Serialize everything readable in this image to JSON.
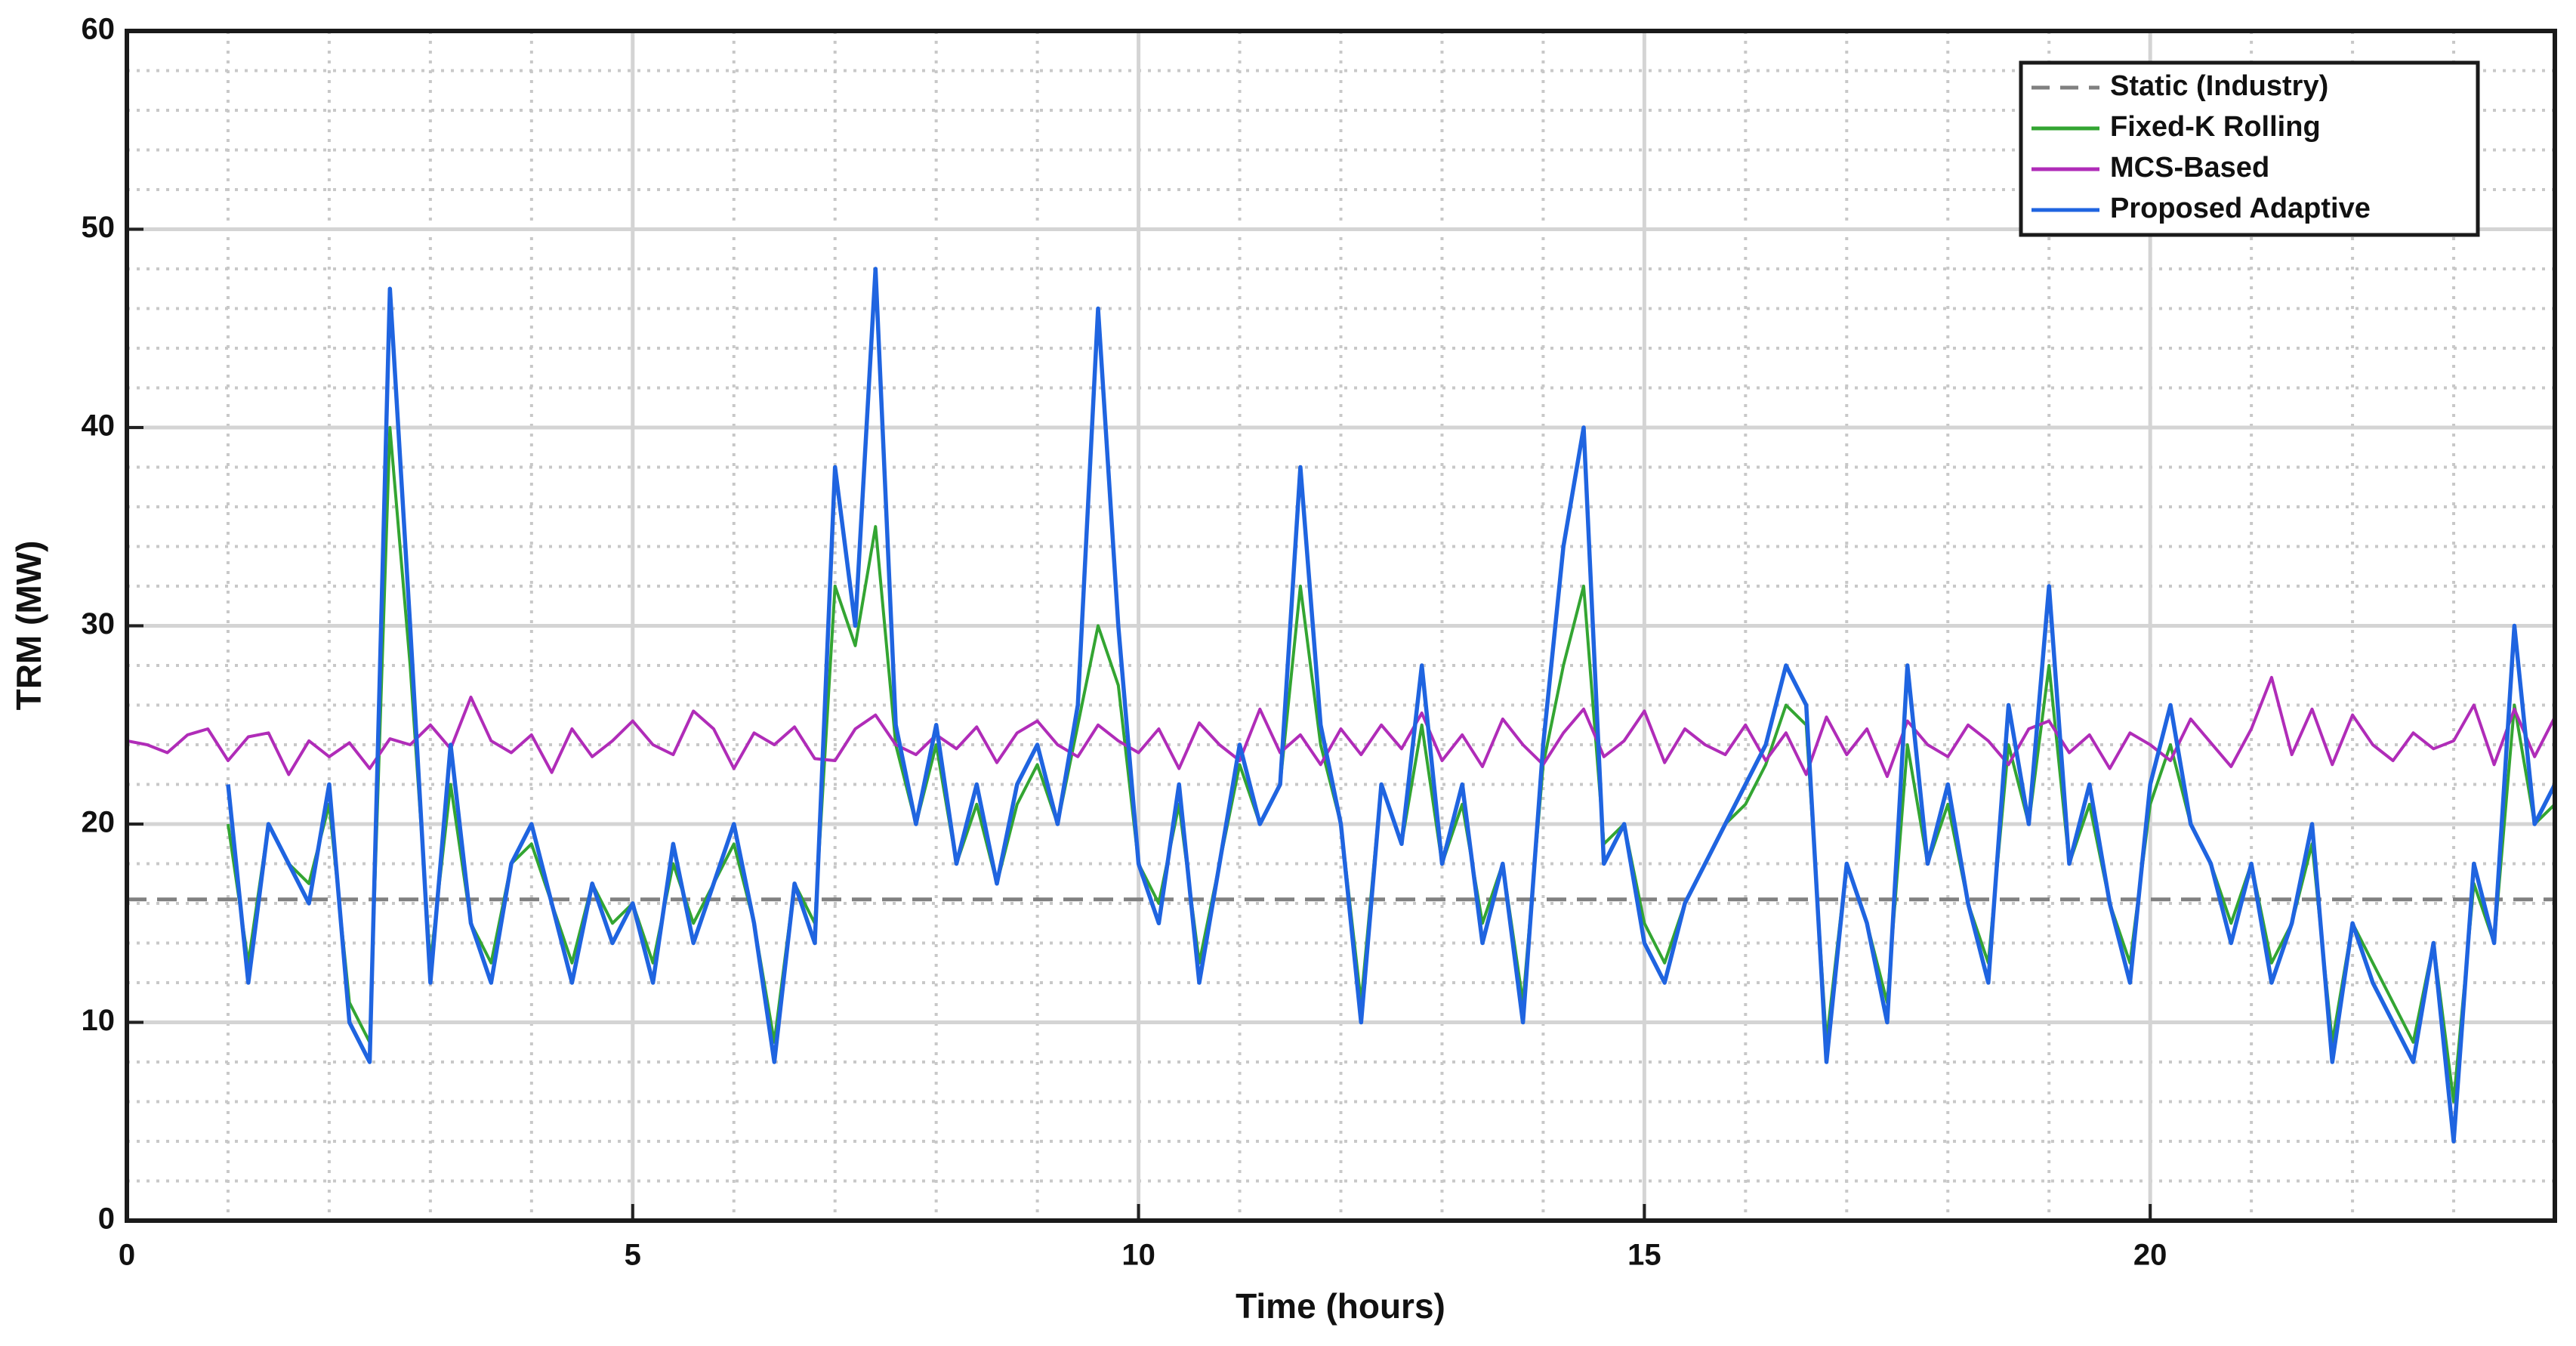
{
  "chart_data": {
    "type": "line",
    "xlabel": "Time (hours)",
    "ylabel": "TRM (MW)",
    "xlim": [
      0,
      24
    ],
    "xticks": [
      0,
      5,
      10,
      15,
      20
    ],
    "xminorticks": [
      1,
      2,
      3,
      4,
      6,
      7,
      8,
      9,
      11,
      12,
      13,
      14,
      16,
      17,
      18,
      19,
      21,
      22,
      23
    ],
    "ylim": [
      0,
      60
    ],
    "yticks": [
      0,
      10,
      20,
      30,
      40,
      50,
      60
    ],
    "yminorticks": [
      2,
      4,
      6,
      8,
      12,
      14,
      16,
      18,
      22,
      24,
      26,
      28,
      32,
      34,
      36,
      38,
      42,
      44,
      46,
      48,
      52,
      54,
      56,
      58
    ],
    "grid": true,
    "minor_grid": true,
    "legend": "upper right",
    "x": [
      0,
      0.2,
      0.4,
      0.6,
      0.8,
      1,
      1.2,
      1.4,
      1.6,
      1.8,
      2,
      2.2,
      2.4,
      2.6,
      2.8,
      3,
      3.2,
      3.4,
      3.6,
      3.8,
      4,
      4.2,
      4.4,
      4.6,
      4.8,
      5,
      5.2,
      5.4,
      5.6,
      5.8,
      6,
      6.2,
      6.4,
      6.6,
      6.8,
      7,
      7.2,
      7.4,
      7.6,
      7.8,
      8,
      8.2,
      8.4,
      8.6,
      8.8,
      9,
      9.2,
      9.4,
      9.6,
      9.8,
      10,
      10.2,
      10.4,
      10.6,
      10.8,
      11,
      11.2,
      11.4,
      11.6,
      11.8,
      12,
      12.2,
      12.4,
      12.6,
      12.8,
      13,
      13.2,
      13.4,
      13.6,
      13.8,
      14,
      14.2,
      14.4,
      14.6,
      14.8,
      15,
      15.2,
      15.4,
      15.6,
      15.8,
      16,
      16.2,
      16.4,
      16.6,
      16.8,
      17,
      17.2,
      17.4,
      17.6,
      17.8,
      18,
      18.2,
      18.4,
      18.6,
      18.8,
      19,
      19.2,
      19.4,
      19.6,
      19.8,
      20,
      20.2,
      20.4,
      20.6,
      20.8,
      21,
      21.2,
      21.4,
      21.6,
      21.8,
      22,
      22.2,
      22.4,
      22.6,
      22.8,
      23,
      23.2,
      23.4,
      23.6,
      23.8,
      24
    ],
    "series": [
      {
        "name": "Static (Industry)",
        "color": "#808080",
        "dash": true,
        "x": [
          0,
          24
        ],
        "values": [
          16.2,
          16.2
        ]
      },
      {
        "name": "Fixed-K Rolling",
        "color": "#33a532",
        "values": [
          null,
          null,
          null,
          null,
          null,
          20,
          13,
          20,
          18,
          17,
          21,
          11,
          9,
          40,
          28,
          13,
          22,
          15,
          13,
          18,
          19,
          16,
          13,
          17,
          15,
          16,
          13,
          18,
          15,
          17,
          19,
          15,
          9,
          17,
          15,
          32,
          29,
          35,
          24,
          20,
          24,
          18,
          21,
          17,
          21,
          23,
          20,
          25,
          30,
          27,
          18,
          16,
          21,
          13,
          18,
          23,
          20,
          22,
          32,
          24,
          20,
          11,
          22,
          19,
          25,
          18,
          21,
          15,
          18,
          11,
          23,
          28,
          32,
          19,
          20,
          15,
          13,
          16,
          18,
          20,
          21,
          23,
          26,
          25,
          9,
          18,
          15,
          11,
          24,
          18,
          21,
          16,
          13,
          24,
          20,
          28,
          18,
          21,
          16,
          13,
          21,
          24,
          20,
          18,
          15,
          18,
          13,
          15,
          19,
          9,
          15,
          13,
          11,
          9,
          14,
          6,
          17,
          14,
          26,
          20,
          21
        ]
      },
      {
        "name": "MCS-Based",
        "color": "#b02cb8",
        "values": [
          24.2,
          24.0,
          23.6,
          24.5,
          24.8,
          23.2,
          24.4,
          24.6,
          22.5,
          24.2,
          23.4,
          24.1,
          22.8,
          24.3,
          24.0,
          25.0,
          23.8,
          26.4,
          24.2,
          23.6,
          24.5,
          22.6,
          24.8,
          23.4,
          24.2,
          25.2,
          24.0,
          23.5,
          25.7,
          24.8,
          22.8,
          24.6,
          24.0,
          24.9,
          23.3,
          23.2,
          24.8,
          25.5,
          24.0,
          23.5,
          24.5,
          23.8,
          24.9,
          23.1,
          24.6,
          25.2,
          24.0,
          23.4,
          25.0,
          24.2,
          23.6,
          24.8,
          22.8,
          25.1,
          24.0,
          23.2,
          25.8,
          23.6,
          24.5,
          23.0,
          24.8,
          23.5,
          25.0,
          23.8,
          25.6,
          23.2,
          24.5,
          22.9,
          25.3,
          24.0,
          23.0,
          24.6,
          25.8,
          23.4,
          24.2,
          25.7,
          23.1,
          24.8,
          24.0,
          23.5,
          25.0,
          23.2,
          24.6,
          22.5,
          25.4,
          23.5,
          24.8,
          22.4,
          25.2,
          24.0,
          23.4,
          25.0,
          24.2,
          23.0,
          24.8,
          25.2,
          23.6,
          24.5,
          22.8,
          24.6,
          24.0,
          23.2,
          25.3,
          24.1,
          22.9,
          24.8,
          27.4,
          23.5,
          25.8,
          23.0,
          25.5,
          24.0,
          23.2,
          24.6,
          23.8,
          24.2,
          26.0,
          23.0,
          25.8,
          23.4,
          25.4
        ]
      },
      {
        "name": "Proposed Adaptive",
        "color": "#1f64e0",
        "values": [
          null,
          null,
          null,
          null,
          null,
          22,
          12,
          20,
          18,
          16,
          22,
          10,
          8,
          47,
          30,
          12,
          24,
          15,
          12,
          18,
          20,
          16,
          12,
          17,
          14,
          16,
          12,
          19,
          14,
          17,
          20,
          15,
          8,
          17,
          14,
          38,
          30,
          48,
          25,
          20,
          25,
          18,
          22,
          17,
          22,
          24,
          20,
          26,
          46,
          30,
          18,
          15,
          22,
          12,
          18,
          24,
          20,
          22,
          38,
          25,
          20,
          10,
          22,
          19,
          28,
          18,
          22,
          14,
          18,
          10,
          24,
          34,
          40,
          18,
          20,
          14,
          12,
          16,
          18,
          20,
          22,
          24,
          28,
          26,
          8,
          18,
          15,
          10,
          28,
          18,
          22,
          16,
          12,
          26,
          20,
          32,
          18,
          22,
          16,
          12,
          22,
          26,
          20,
          18,
          14,
          18,
          12,
          15,
          20,
          8,
          15,
          12,
          10,
          8,
          14,
          4,
          18,
          14,
          30,
          20,
          22
        ]
      }
    ]
  }
}
